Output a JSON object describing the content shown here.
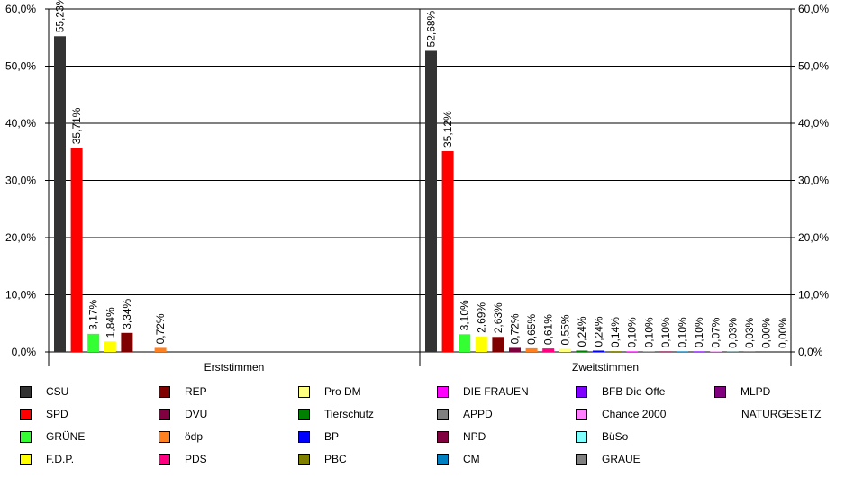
{
  "chart_data": {
    "type": "bar",
    "ylim": [
      0,
      60
    ],
    "ytick_labels": [
      "0,0%",
      "10,0%",
      "20,0%",
      "30,0%",
      "40,0%",
      "50,0%",
      "60,0%"
    ],
    "ytick_values": [
      0,
      10,
      20,
      30,
      40,
      50,
      60
    ],
    "grid": true,
    "groups": [
      {
        "name": "Erststimmen",
        "series": [
          {
            "name": "CSU",
            "value": 55.23,
            "label": "55,23%"
          },
          {
            "name": "SPD",
            "value": 35.71,
            "label": "35,71%"
          },
          {
            "name": "GRÜNE",
            "value": 3.17,
            "label": "3,17%"
          },
          {
            "name": "F.D.P.",
            "value": 1.84,
            "label": "1,84%"
          },
          {
            "name": "REP",
            "value": 3.34,
            "label": "3,34%"
          },
          {
            "name": "DVU",
            "value": null,
            "label": ""
          },
          {
            "name": "ödp",
            "value": 0.72,
            "label": "0,72%"
          }
        ]
      },
      {
        "name": "Zweitstimmen",
        "series": [
          {
            "name": "CSU",
            "value": 52.68,
            "label": "52,68%"
          },
          {
            "name": "SPD",
            "value": 35.12,
            "label": "35,12%"
          },
          {
            "name": "GRÜNE",
            "value": 3.1,
            "label": "3,10%"
          },
          {
            "name": "F.D.P.",
            "value": 2.69,
            "label": "2,69%"
          },
          {
            "name": "REP",
            "value": 2.63,
            "label": "2,63%"
          },
          {
            "name": "DVU",
            "value": 0.72,
            "label": "0,72%"
          },
          {
            "name": "ödp",
            "value": 0.65,
            "label": "0,65%"
          },
          {
            "name": "PDS",
            "value": 0.61,
            "label": "0,61%"
          },
          {
            "name": "Pro DM",
            "value": 0.55,
            "label": "0,55%"
          },
          {
            "name": "Tierschutz",
            "value": 0.24,
            "label": "0,24%"
          },
          {
            "name": "BP",
            "value": 0.24,
            "label": "0,24%"
          },
          {
            "name": "PBC",
            "value": 0.14,
            "label": "0,14%"
          },
          {
            "name": "DIE FRAUEN",
            "value": 0.1,
            "label": "0,10%"
          },
          {
            "name": "APPD",
            "value": 0.1,
            "label": "0,10%"
          },
          {
            "name": "NPD",
            "value": 0.1,
            "label": "0,10%"
          },
          {
            "name": "CM",
            "value": 0.1,
            "label": "0,10%"
          },
          {
            "name": "BFB Die Offe",
            "value": 0.1,
            "label": "0,10%"
          },
          {
            "name": "Chance 2000",
            "value": 0.07,
            "label": "0,07%"
          },
          {
            "name": "BüSo",
            "value": 0.03,
            "label": "0,03%"
          },
          {
            "name": "GRAUE",
            "value": 0.03,
            "label": "0,03%"
          },
          {
            "name": "MLPD",
            "value": 0.0,
            "label": "0,00%"
          },
          {
            "name": "NATURGESETZ",
            "value": 0.0,
            "label": "0,00%"
          }
        ]
      }
    ],
    "legend_position": "bottom",
    "legend": [
      {
        "name": "CSU",
        "color": "#333333"
      },
      {
        "name": "SPD",
        "color": "#ff0000"
      },
      {
        "name": "GRÜNE",
        "color": "#33ff33"
      },
      {
        "name": "F.D.P.",
        "color": "#ffff00"
      },
      {
        "name": "REP",
        "color": "#800000"
      },
      {
        "name": "DVU",
        "color": "#800040"
      },
      {
        "name": "ödp",
        "color": "#ff8020"
      },
      {
        "name": "PDS",
        "color": "#ff0080"
      },
      {
        "name": "Pro DM",
        "color": "#ffff80"
      },
      {
        "name": "Tierschutz",
        "color": "#008000"
      },
      {
        "name": "BP",
        "color": "#0000ff"
      },
      {
        "name": "PBC",
        "color": "#808000"
      },
      {
        "name": "DIE FRAUEN",
        "color": "#ff00ff"
      },
      {
        "name": "APPD",
        "color": "#808080"
      },
      {
        "name": "NPD",
        "color": "#800040"
      },
      {
        "name": "CM",
        "color": "#0080c0"
      },
      {
        "name": "BFB Die Offe",
        "color": "#8000ff"
      },
      {
        "name": "Chance 2000",
        "color": "#ff80ff"
      },
      {
        "name": "BüSo",
        "color": "#80ffff"
      },
      {
        "name": "GRAUE",
        "color": "#808080"
      },
      {
        "name": "MLPD",
        "color": "#800080"
      },
      {
        "name": "NATURGESETZ",
        "color": ""
      }
    ]
  }
}
